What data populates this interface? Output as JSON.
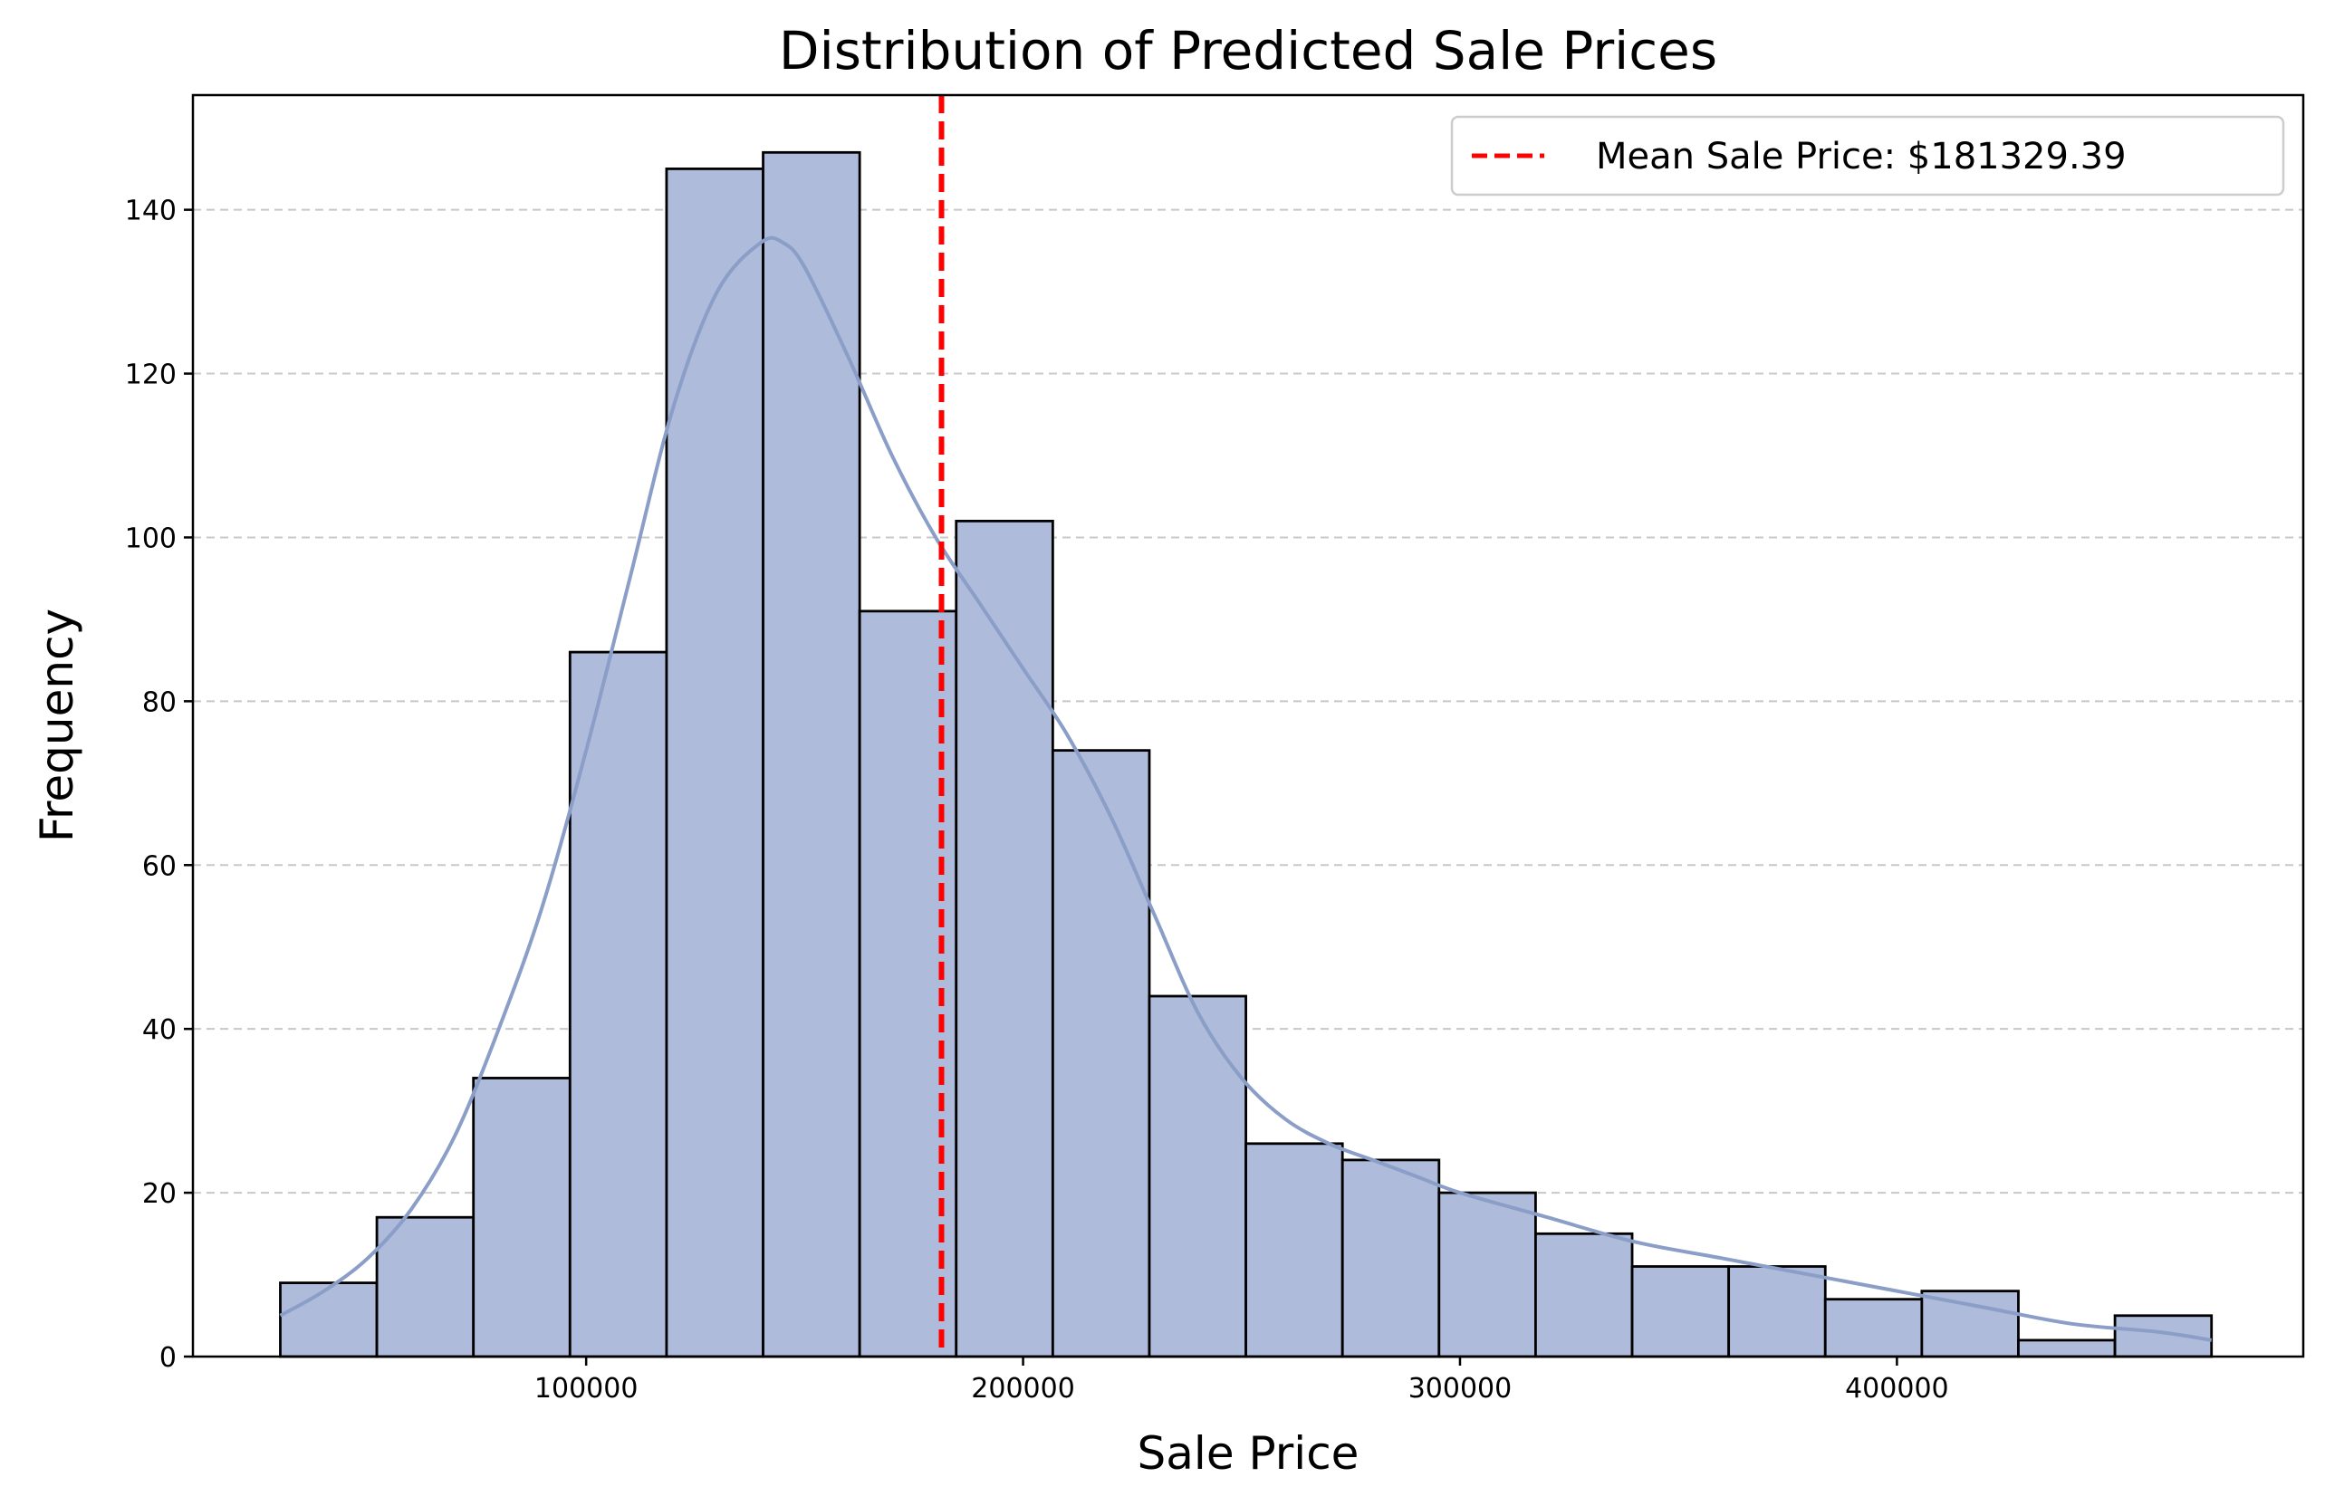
{
  "chart_data": {
    "type": "bar",
    "subtype": "histogram-with-kde",
    "title": "Distribution of Predicted Sale Prices",
    "xlabel": "Sale Price",
    "ylabel": "Frequency",
    "xlim": [
      10000,
      493000
    ],
    "ylim": [
      0,
      154
    ],
    "x_ticks": [
      100000,
      200000,
      300000,
      400000
    ],
    "x_tick_labels": [
      "100000",
      "200000",
      "300000",
      "400000"
    ],
    "y_ticks": [
      0,
      20,
      40,
      60,
      80,
      100,
      120,
      140
    ],
    "y_tick_labels": [
      "0",
      "20",
      "40",
      "60",
      "80",
      "100",
      "120",
      "140"
    ],
    "grid": "y-dashed",
    "bins": {
      "edges": [
        30000,
        52100,
        74200,
        96300,
        118400,
        140500,
        162600,
        184700,
        206800,
        228900,
        251000,
        273100,
        295200,
        317300,
        339400,
        361500,
        383600,
        405700,
        427800,
        449900,
        472000
      ],
      "counts": [
        9,
        17,
        34,
        86,
        145,
        147,
        91,
        102,
        74,
        44,
        26,
        24,
        20,
        15,
        11,
        11,
        7,
        8,
        2,
        5
      ]
    },
    "kde_curve": {
      "x": [
        30000,
        40000,
        50000,
        60000,
        70000,
        80000,
        90000,
        100000,
        110000,
        120000,
        130000,
        140000,
        145000,
        150000,
        160000,
        170000,
        180000,
        190000,
        200000,
        210000,
        220000,
        230000,
        240000,
        250000,
        260000,
        270000,
        280000,
        290000,
        300000,
        320000,
        340000,
        360000,
        380000,
        400000,
        420000,
        440000,
        460000,
        472000
      ],
      "y": [
        5,
        8,
        12,
        18,
        27,
        40,
        55,
        74,
        95,
        116,
        130,
        136,
        136,
        133,
        122,
        110,
        100,
        92,
        84,
        76,
        66,
        54,
        42,
        34,
        29,
        26,
        24,
        22,
        20,
        17,
        14,
        12,
        10,
        8,
        6,
        4,
        3,
        2
      ]
    },
    "mean_line": {
      "value": 181329.39,
      "label": "Mean Sale Price: $181329.39",
      "color": "#ff0000",
      "style": "dashed"
    },
    "colors": {
      "bar_fill": "#aebbda",
      "bar_edge": "#000000",
      "kde_line": "#8a9ec8",
      "grid": "#c8c8c8"
    },
    "legend": {
      "placement": "top-right",
      "entries": [
        "Mean Sale Price: $181329.39"
      ]
    }
  }
}
